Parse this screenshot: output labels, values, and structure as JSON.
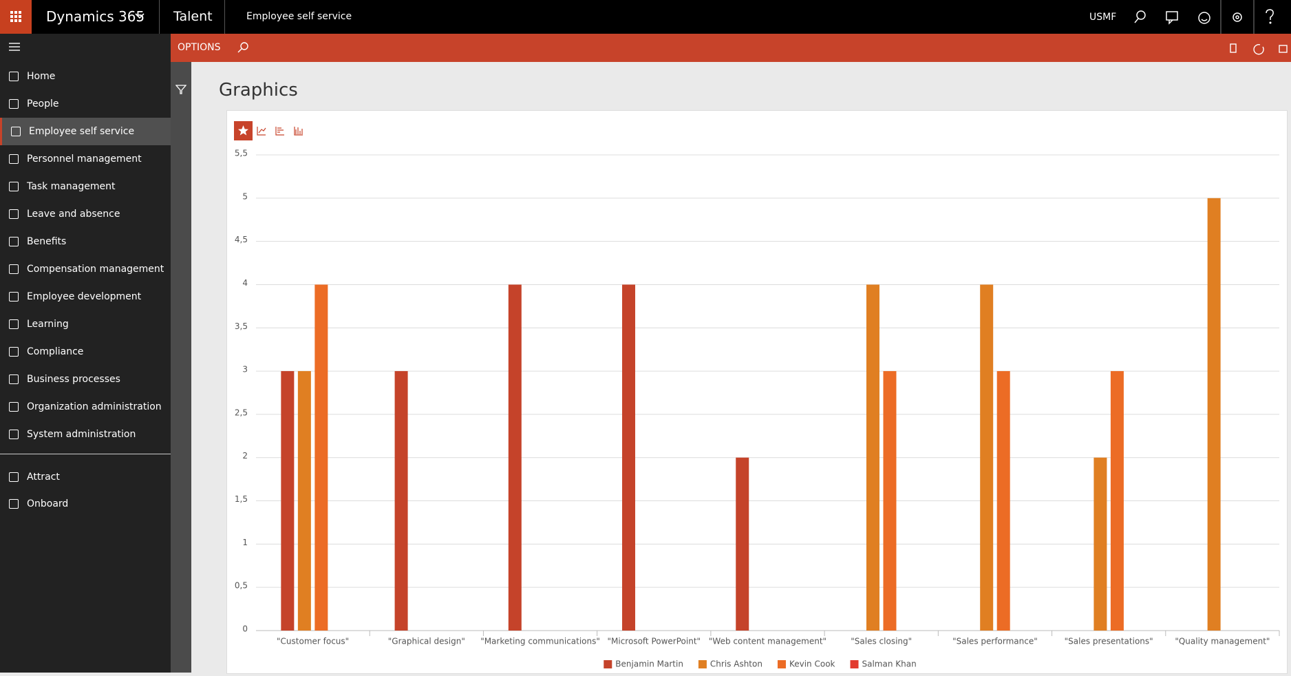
{
  "header": {
    "app": "Dynamics 365",
    "module": "Talent",
    "page": "Employee self service",
    "company": "USMF"
  },
  "toolbar": {
    "options": "OPTIONS"
  },
  "navigation": {
    "items": [
      "Home",
      "People",
      "Employee self service",
      "Personnel management",
      "Task management",
      "Leave and absence",
      "Benefits",
      "Compensation management",
      "Employee development",
      "Learning",
      "Compliance",
      "Business processes",
      "Organization administration",
      "System administration"
    ],
    "extra": [
      "Attract",
      "Onboard"
    ]
  },
  "page_title": "Graphics",
  "chart_data": {
    "type": "bar",
    "categories": [
      "\"Customer focus\"",
      "\"Graphical design\"",
      "\"Marketing communications\"",
      "\"Microsoft PowerPoint\"",
      "\"Web content management\"",
      "\"Sales closing\"",
      "\"Sales performance\"",
      "\"Sales presentations\"",
      "\"Quality management\""
    ],
    "series": [
      {
        "name": "Benjamin Martin",
        "color": "#c5432a",
        "values": [
          3,
          3,
          4,
          4,
          2,
          null,
          null,
          null,
          null
        ]
      },
      {
        "name": "Chris Ashton",
        "color": "#e07f22",
        "values": [
          3,
          null,
          null,
          null,
          null,
          4,
          4,
          2,
          5
        ]
      },
      {
        "name": "Kevin Cook",
        "color": "#ec6c25",
        "values": [
          4,
          null,
          null,
          null,
          null,
          3,
          3,
          3,
          null
        ]
      },
      {
        "name": "Salman Khan",
        "color": "#e23b2e",
        "values": [
          null,
          null,
          null,
          null,
          null,
          null,
          null,
          null,
          null
        ]
      }
    ],
    "ylim": [
      0,
      5.5
    ],
    "yticks": [
      0,
      {
        "value": 0.5,
        "label": "0,5"
      },
      1,
      {
        "value": 1.5,
        "label": "1,5"
      },
      2,
      {
        "value": 2.5,
        "label": "2,5"
      },
      3,
      {
        "value": 3.5,
        "label": "3,5"
      },
      4,
      {
        "value": 4.5,
        "label": "4,5"
      },
      5,
      {
        "value": 5.5,
        "label": "5,5"
      }
    ],
    "grid": true,
    "legend": "bottom"
  }
}
